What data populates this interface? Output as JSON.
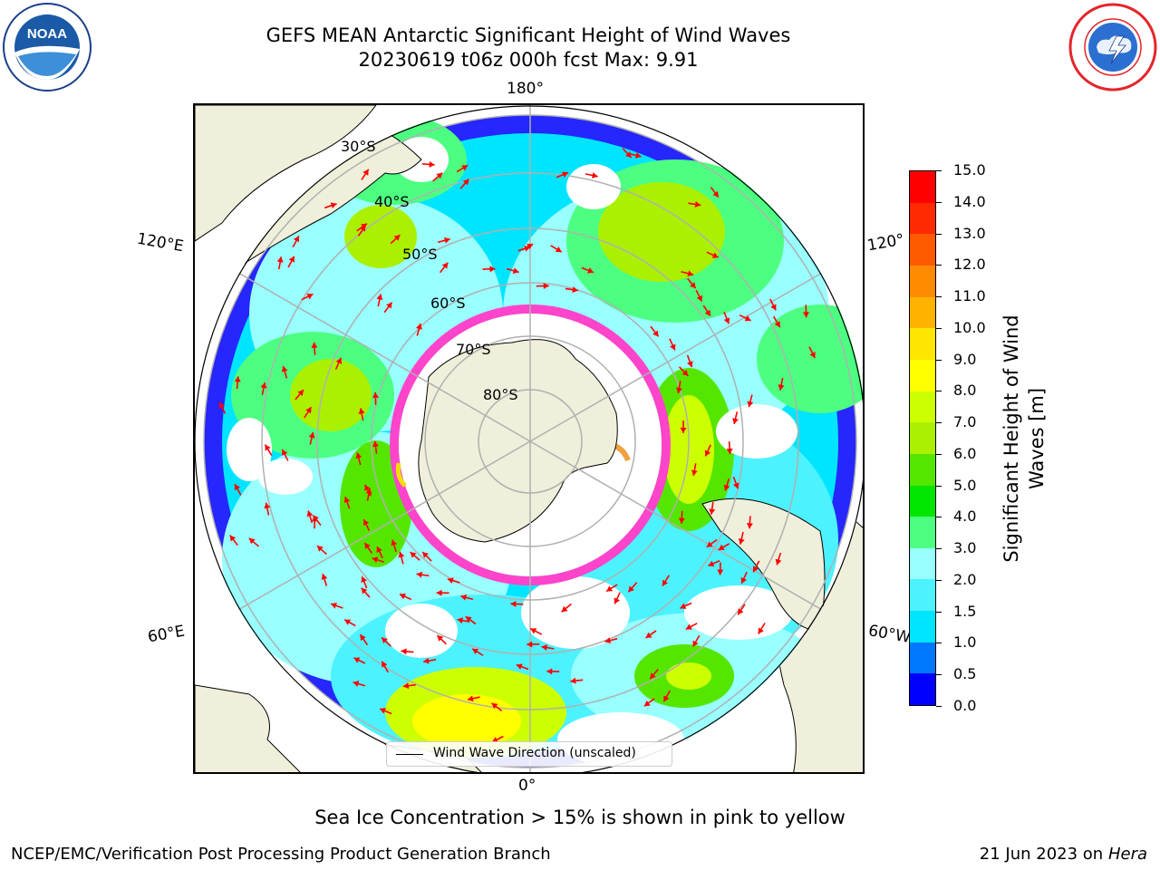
{
  "header": {
    "title_line1": "GEFS MEAN Antarctic Significant Height of Wind Waves",
    "title_line2": "20230619 t06z 000h fcst   Max: 9.91"
  },
  "logos": {
    "left": {
      "name": "NOAA",
      "text": "NOAA",
      "color": "#1a5aa6"
    },
    "right": {
      "name": "National Weather Service",
      "color": "#e3262b"
    }
  },
  "map": {
    "projection": "south-polar-stereographic",
    "lon_labels": {
      "top": "180°",
      "bottom": "0°",
      "left_upper": "120°E",
      "left_lower": "60°E",
      "right_upper": "120°",
      "right_lower": "60°W"
    },
    "lat_labels": [
      "30°S",
      "40°S",
      "50°S",
      "60°S",
      "70°S",
      "80°S"
    ],
    "colors": {
      "land": "#efefdb",
      "ocean_missing": "#ffffff",
      "grid": "#b0b0b0",
      "arrow": "#ff0000",
      "ice_pink": "#ff44cc",
      "ice_yellow": "#f0e000"
    },
    "legend_label": "Wind Wave Direction (unscaled)"
  },
  "colorbar": {
    "label_line1": "Significant Height of Wind",
    "label_line2": "Waves [m]",
    "ticks": [
      "0.0",
      "0.5",
      "1.0",
      "1.5",
      "2.0",
      "3.0",
      "4.0",
      "5.0",
      "6.0",
      "7.0",
      "8.0",
      "9.0",
      "10.0",
      "11.0",
      "12.0",
      "13.0",
      "14.0",
      "15.0"
    ],
    "colors": [
      "#0000ff",
      "#0078ff",
      "#00e5ff",
      "#4df2ff",
      "#99ffff",
      "#4dff80",
      "#00e600",
      "#55e600",
      "#aaf000",
      "#ccff00",
      "#ffff00",
      "#ffe600",
      "#ffb300",
      "#ff8c00",
      "#ff5a00",
      "#ff2a00",
      "#ff0000"
    ]
  },
  "note": "Sea Ice Concentration > 15% is shown in pink to yellow",
  "footer": {
    "left": "NCEP/EMC/Verification Post Processing Product Generation Branch",
    "right_date": "21 Jun 2023 on",
    "right_host": "Hera"
  }
}
